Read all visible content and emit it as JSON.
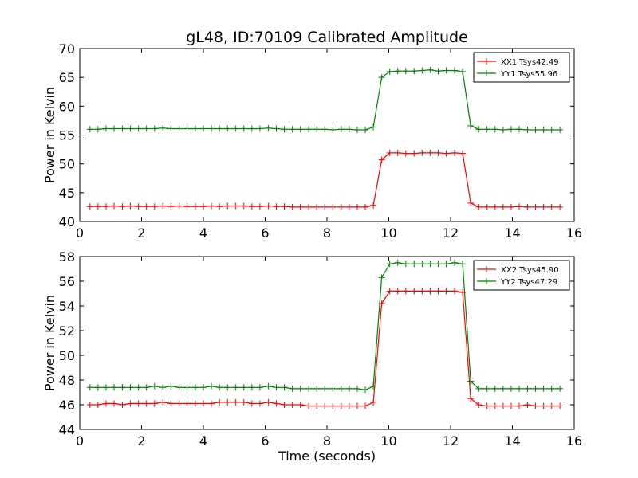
{
  "title": "gL48, ID:70109 Calibrated Amplitude",
  "chart_data": [
    {
      "type": "line",
      "title": "gL48, ID:70109 Calibrated Amplitude",
      "xlabel": "",
      "ylabel": "Power in Kelvin",
      "xlim": [
        0,
        16
      ],
      "ylim": [
        40,
        70
      ],
      "xticks": [
        "0",
        "2",
        "4",
        "6",
        "8",
        "10",
        "12",
        "14",
        "16"
      ],
      "yticks": [
        "40",
        "45",
        "50",
        "55",
        "60",
        "65",
        "70"
      ],
      "grid": false,
      "legend_position": "top-right",
      "x": [
        0.33,
        0.59,
        0.85,
        1.11,
        1.38,
        1.64,
        1.9,
        2.16,
        2.42,
        2.69,
        2.95,
        3.21,
        3.47,
        3.74,
        4.0,
        4.26,
        4.52,
        4.78,
        5.05,
        5.31,
        5.57,
        5.83,
        6.1,
        6.36,
        6.62,
        6.88,
        7.14,
        7.41,
        7.67,
        7.93,
        8.19,
        8.46,
        8.72,
        8.98,
        9.24,
        9.5,
        9.77,
        10.03,
        10.29,
        10.55,
        10.82,
        11.08,
        11.34,
        11.6,
        11.86,
        12.13,
        12.39,
        12.65,
        12.91,
        13.18,
        13.44,
        13.7,
        13.96,
        14.22,
        14.49,
        14.75,
        15.01,
        15.27,
        15.54
      ],
      "series": [
        {
          "name": "XX1 Tsys42.49",
          "color": "#ff0000",
          "values": [
            42.6,
            42.6,
            42.6,
            42.7,
            42.6,
            42.7,
            42.6,
            42.6,
            42.6,
            42.7,
            42.6,
            42.7,
            42.6,
            42.6,
            42.6,
            42.7,
            42.6,
            42.7,
            42.7,
            42.7,
            42.6,
            42.6,
            42.7,
            42.6,
            42.6,
            42.5,
            42.5,
            42.5,
            42.5,
            42.5,
            42.5,
            42.5,
            42.5,
            42.5,
            42.5,
            42.8,
            50.7,
            51.9,
            51.9,
            51.8,
            51.8,
            51.9,
            51.9,
            51.9,
            51.8,
            51.9,
            51.8,
            43.2,
            42.5,
            42.5,
            42.5,
            42.5,
            42.5,
            42.6,
            42.5,
            42.5,
            42.5,
            42.5,
            42.5
          ]
        },
        {
          "name": "YY1 Tsys55.96",
          "color": "#008000",
          "values": [
            56.0,
            56.0,
            56.1,
            56.1,
            56.1,
            56.1,
            56.1,
            56.1,
            56.1,
            56.2,
            56.1,
            56.1,
            56.1,
            56.1,
            56.1,
            56.1,
            56.1,
            56.1,
            56.1,
            56.1,
            56.1,
            56.1,
            56.2,
            56.1,
            56.0,
            56.0,
            56.0,
            56.0,
            56.0,
            56.0,
            55.9,
            56.0,
            56.0,
            55.9,
            55.9,
            56.4,
            65.0,
            66.0,
            66.1,
            66.1,
            66.1,
            66.2,
            66.3,
            66.1,
            66.2,
            66.2,
            66.0,
            56.6,
            56.0,
            56.0,
            56.0,
            55.9,
            56.0,
            56.0,
            55.9,
            55.9,
            55.9,
            55.9,
            55.9
          ]
        }
      ]
    },
    {
      "type": "line",
      "title": "",
      "xlabel": "Time (seconds)",
      "ylabel": "Power in Kelvin",
      "xlim": [
        0,
        16
      ],
      "ylim": [
        44,
        58
      ],
      "xticks": [
        "0",
        "2",
        "4",
        "6",
        "8",
        "10",
        "12",
        "14",
        "16"
      ],
      "yticks": [
        "44",
        "46",
        "48",
        "50",
        "52",
        "54",
        "56",
        "58"
      ],
      "grid": false,
      "legend_position": "top-right",
      "x": [
        0.33,
        0.59,
        0.85,
        1.11,
        1.38,
        1.64,
        1.9,
        2.16,
        2.42,
        2.69,
        2.95,
        3.21,
        3.47,
        3.74,
        4.0,
        4.26,
        4.52,
        4.78,
        5.05,
        5.31,
        5.57,
        5.83,
        6.1,
        6.36,
        6.62,
        6.88,
        7.14,
        7.41,
        7.67,
        7.93,
        8.19,
        8.46,
        8.72,
        8.98,
        9.24,
        9.5,
        9.77,
        10.03,
        10.29,
        10.55,
        10.82,
        11.08,
        11.34,
        11.6,
        11.86,
        12.13,
        12.39,
        12.65,
        12.91,
        13.18,
        13.44,
        13.7,
        13.96,
        14.22,
        14.49,
        14.75,
        15.01,
        15.27,
        15.54
      ],
      "series": [
        {
          "name": "XX2 Tsys45.90",
          "color": "#ff0000",
          "values": [
            46.0,
            46.0,
            46.1,
            46.1,
            46.0,
            46.1,
            46.1,
            46.1,
            46.1,
            46.2,
            46.1,
            46.1,
            46.1,
            46.1,
            46.1,
            46.1,
            46.2,
            46.2,
            46.2,
            46.2,
            46.1,
            46.1,
            46.2,
            46.1,
            46.0,
            46.0,
            46.0,
            45.9,
            45.9,
            45.9,
            45.9,
            45.9,
            45.9,
            45.9,
            45.9,
            46.2,
            54.2,
            55.2,
            55.2,
            55.2,
            55.2,
            55.2,
            55.2,
            55.2,
            55.2,
            55.2,
            55.1,
            46.5,
            46.0,
            45.9,
            45.9,
            45.9,
            45.9,
            45.9,
            46.0,
            45.9,
            45.9,
            45.9,
            45.9
          ]
        },
        {
          "name": "YY2 Tsys47.29",
          "color": "#008000",
          "values": [
            47.4,
            47.4,
            47.4,
            47.4,
            47.4,
            47.4,
            47.4,
            47.4,
            47.5,
            47.4,
            47.5,
            47.4,
            47.4,
            47.4,
            47.4,
            47.5,
            47.4,
            47.4,
            47.4,
            47.4,
            47.4,
            47.4,
            47.5,
            47.4,
            47.4,
            47.3,
            47.3,
            47.3,
            47.3,
            47.3,
            47.3,
            47.3,
            47.3,
            47.3,
            47.2,
            47.5,
            56.3,
            57.4,
            57.5,
            57.4,
            57.4,
            57.4,
            57.4,
            57.4,
            57.4,
            57.5,
            57.4,
            47.9,
            47.3,
            47.3,
            47.3,
            47.3,
            47.3,
            47.3,
            47.3,
            47.3,
            47.3,
            47.3,
            47.3
          ]
        }
      ]
    }
  ]
}
